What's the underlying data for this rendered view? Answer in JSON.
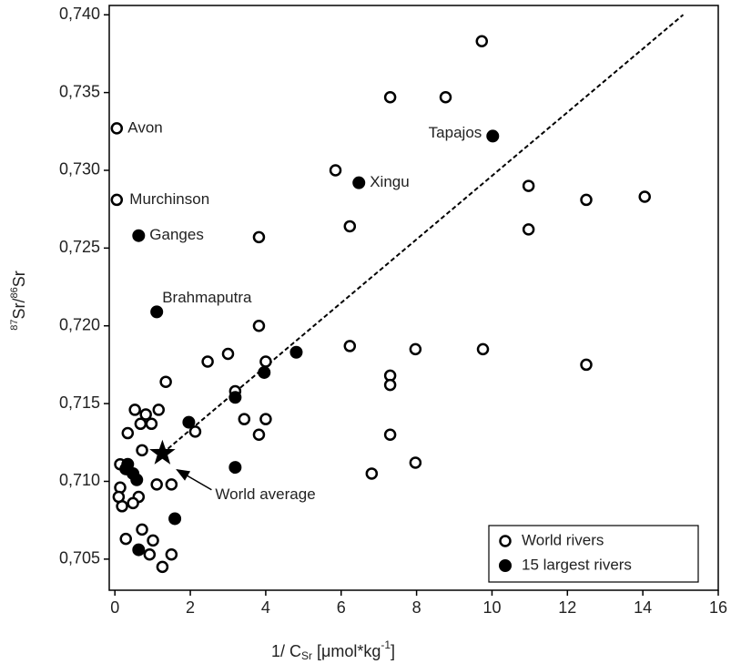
{
  "chart_data": {
    "type": "scatter",
    "x_label": {
      "main": "1/ C",
      "sub": "Sr",
      "rest": " [μmol*kg",
      "sup": "-1",
      "end": "]"
    },
    "y_label": {
      "sup1": "87",
      "main1": "Sr/",
      "sup2": "86",
      "main2": "Sr"
    },
    "xlim": [
      -0.15,
      16
    ],
    "ylim": [
      0.703,
      0.7406
    ],
    "xticks": [
      0,
      2,
      4,
      6,
      8,
      10,
      12,
      14,
      16
    ],
    "yticks": [
      {
        "value": 0.705,
        "label": "0,705"
      },
      {
        "value": 0.71,
        "label": "0,710"
      },
      {
        "value": 0.715,
        "label": "0,715"
      },
      {
        "value": 0.72,
        "label": "0,720"
      },
      {
        "value": 0.725,
        "label": "0,725"
      },
      {
        "value": 0.73,
        "label": "0,730"
      },
      {
        "value": 0.735,
        "label": "0,735"
      },
      {
        "value": 0.74,
        "label": "0,740"
      }
    ],
    "series": [
      {
        "name": "World rivers",
        "marker": "open",
        "color": "#000000",
        "x": [
          0.05,
          0.05,
          9.73,
          7.3,
          8.77,
          5.85,
          10.97,
          12.5,
          14.05,
          6.23,
          10.97,
          3.82,
          6.23,
          7.97,
          9.76,
          12.5,
          3.0,
          2.46,
          4.0,
          3.82,
          1.35,
          7.3,
          7.3,
          3.19,
          3.43,
          4.0,
          3.82,
          7.3,
          2.13,
          7.97,
          6.81,
          0.53,
          1.16,
          0.82,
          0.34,
          0.68,
          0.97,
          0.72,
          1.11,
          1.5,
          0.14,
          0.63,
          0.19,
          0.48,
          0.1,
          0.29,
          0.72,
          1.01,
          0.92,
          1.5,
          1.26,
          0.14
        ],
        "values": [
          0.7327,
          0.7281,
          0.7383,
          0.7347,
          0.7347,
          0.73,
          0.729,
          0.7281,
          0.7283,
          0.7264,
          0.7262,
          0.7257,
          0.7187,
          0.7185,
          0.7185,
          0.7175,
          0.7182,
          0.7177,
          0.7177,
          0.72,
          0.7164,
          0.7168,
          0.7162,
          0.7158,
          0.714,
          0.714,
          0.713,
          0.713,
          0.7132,
          0.7112,
          0.7105,
          0.7146,
          0.7146,
          0.7143,
          0.7131,
          0.7137,
          0.7137,
          0.712,
          0.7098,
          0.7098,
          0.7096,
          0.709,
          0.7084,
          0.7086,
          0.709,
          0.7063,
          0.7069,
          0.7062,
          0.7053,
          0.7053,
          0.7045,
          0.7111
        ]
      },
      {
        "name": "15 largest rivers",
        "marker": "filled",
        "color": "#000000",
        "x": [
          10.02,
          6.47,
          0.63,
          1.11,
          4.81,
          3.96,
          3.19,
          1.96,
          3.19,
          1.59,
          0.63,
          0.34,
          0.48,
          0.29,
          0.58
        ],
        "values": [
          0.7322,
          0.7292,
          0.7258,
          0.7209,
          0.7183,
          0.717,
          0.7154,
          0.7138,
          0.7109,
          0.7076,
          0.7056,
          0.7111,
          0.7105,
          0.7108,
          0.7101
        ]
      }
    ],
    "annotations": [
      "Avon",
      "Murchinson",
      "Ganges",
      "Brahmaputra",
      "Xingu",
      "Tapajos"
    ],
    "world_average": {
      "name": "World average",
      "x": 1.26,
      "y": 0.7118
    },
    "trend_line": {
      "x": [
        1.26,
        15.07
      ],
      "y": [
        0.7118,
        0.74
      ]
    },
    "legend": "lower right"
  }
}
